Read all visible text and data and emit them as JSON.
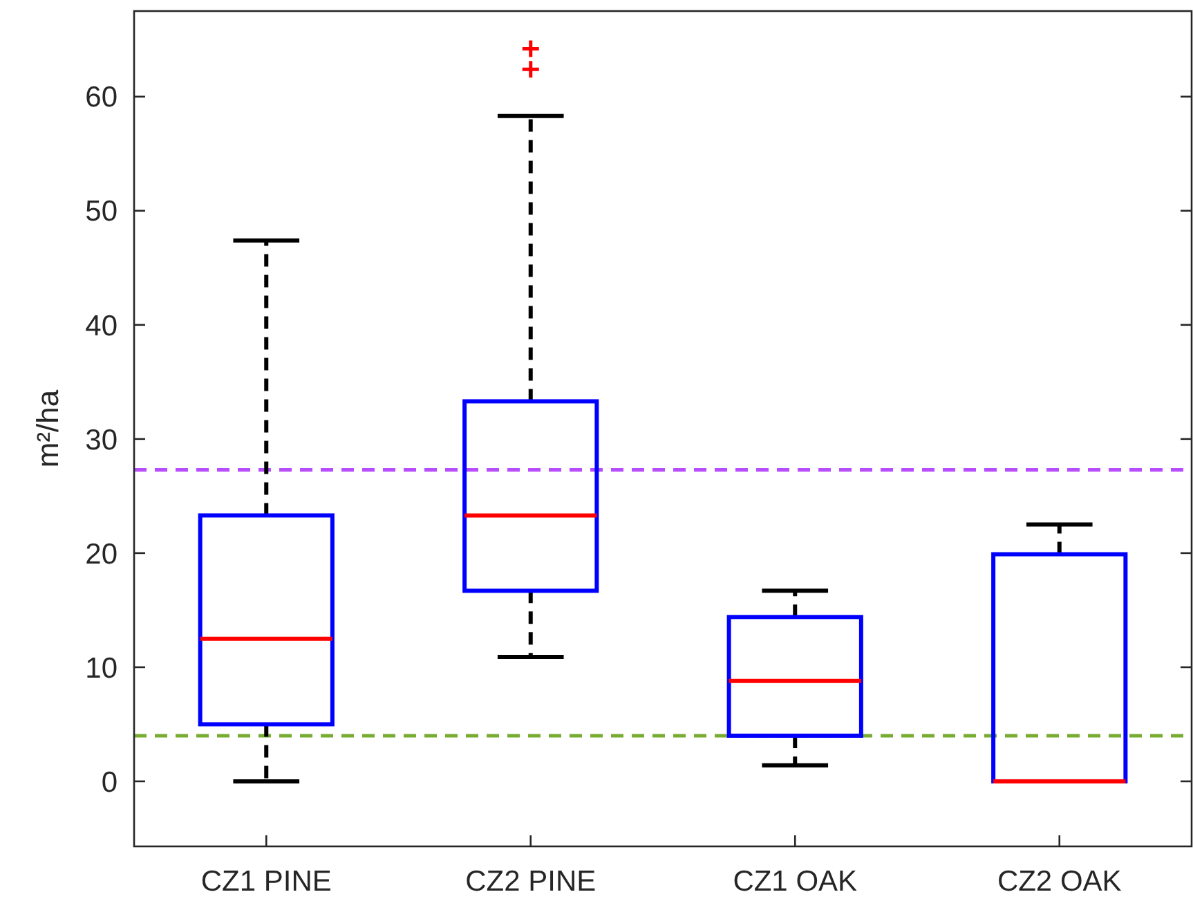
{
  "chart_data": {
    "type": "box",
    "ylabel": "m²/ha",
    "categories": [
      "CZ1 PINE",
      "CZ2 PINE",
      "CZ1 OAK",
      "CZ2 OAK"
    ],
    "boxes": [
      {
        "low": 0,
        "q1": 5,
        "median": 12.5,
        "q3": 23.3,
        "high": 47.4
      },
      {
        "low": 10.9,
        "q1": 16.7,
        "median": 23.3,
        "q3": 33.3,
        "high": 58.3,
        "outliers": [
          62.4,
          64.2
        ]
      },
      {
        "low": 1.4,
        "q1": 4,
        "median": 8.8,
        "q3": 14.4,
        "high": 16.7
      },
      {
        "low": 0,
        "q1": 0,
        "median": 0,
        "q3": 19.9,
        "high": 22.5
      }
    ],
    "color": "#0000ff",
    "ylim": [
      -5.7,
      67.5
    ],
    "yticks": [
      0,
      10,
      20,
      30,
      40,
      50,
      60
    ],
    "grid": false,
    "ref_lines": [
      {
        "axis": "y",
        "value": 27.3,
        "color": "#b84dff",
        "line_style": "dashed"
      },
      {
        "axis": "y",
        "value": 4,
        "color": "#77ac30",
        "line_style": "dashed"
      }
    ]
  }
}
